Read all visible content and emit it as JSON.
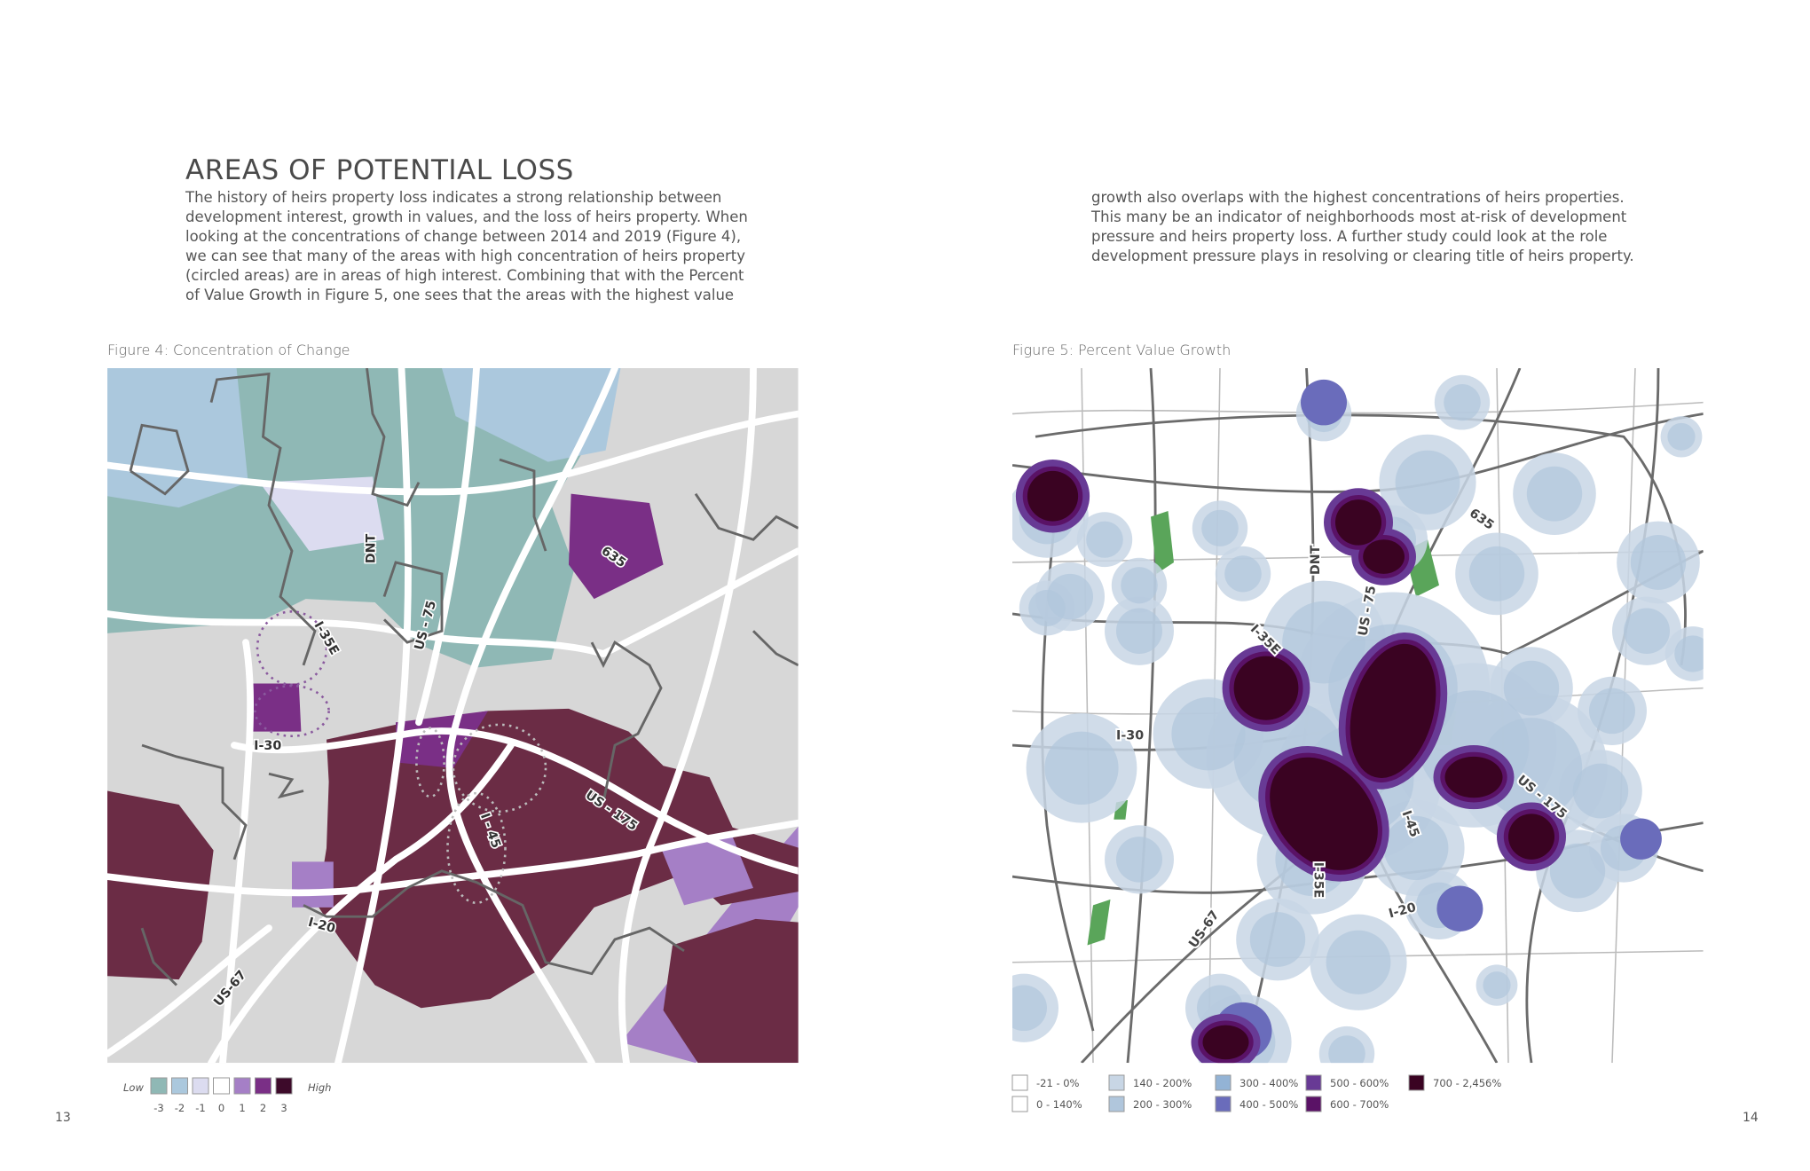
{
  "page": {
    "title": "AREAS OF POTENTIAL LOSS",
    "body_left": [
      "The history of heirs property loss indicates a strong relationship between",
      "development interest, growth in values, and the loss of heirs property. When",
      "looking at the concentrations of change between 2014 and 2019 (Figure 4),",
      "we can see that many of the areas with high concentration of heirs property",
      "(circled areas) are in areas of high interest. Combining that with the Percent",
      "of Value Growth in Figure 5, one sees that the areas with the highest value"
    ],
    "body_right": [
      "growth also overlaps with the highest concentrations of heirs properties.",
      "This many be an indicator of neighborhoods most at-risk of development",
      "pressure and heirs property loss. A further study could look at the role",
      "development pressure plays in resolving or clearing title of heirs property."
    ],
    "page_numbers": [
      13,
      14
    ]
  },
  "figures": [
    {
      "caption": "Figure 4: Concentration of Change",
      "road_labels": [
        "DNT",
        "US - 75",
        "I-35E",
        "635",
        "I-30",
        "US - 175",
        "I - 45",
        "I-20",
        "US-67"
      ],
      "legend": {
        "low": "Low",
        "high": "High",
        "items": [
          {
            "value": -3,
            "color": "#8fb8b5"
          },
          {
            "value": -2,
            "color": "#abc8dd"
          },
          {
            "value": -1,
            "color": "#dcdcf0"
          },
          {
            "value": 0,
            "color": "#ffffff"
          },
          {
            "value": 1,
            "color": "#a57fc6"
          },
          {
            "value": 2,
            "color": "#7a2f86"
          },
          {
            "value": 3,
            "color": "#3d0a2a"
          }
        ]
      }
    },
    {
      "caption": "Figure 5: Percent Value Growth",
      "road_labels": [
        "635",
        "DNT",
        "US - 75",
        "I-35E",
        "I-30",
        "US - 175",
        "I-45",
        "I-35E",
        "I-20",
        "US-67"
      ],
      "legend": {
        "items": [
          {
            "label": "-21 - 0%",
            "color": "#ffffff"
          },
          {
            "label": "0 - 140%",
            "color": "#ffffff"
          },
          {
            "label": "140 - 200%",
            "color": "#c8d6e5"
          },
          {
            "label": "200 - 300%",
            "color": "#b0c6dc"
          },
          {
            "label": "300 - 400%",
            "color": "#93b3d5"
          },
          {
            "label": "400 - 500%",
            "color": "#6a6cbb"
          },
          {
            "label": "500 - 600%",
            "color": "#683a95"
          },
          {
            "label": "600 - 700%",
            "color": "#5a1266"
          },
          {
            "label": "700 - 2,456%",
            "color": "#3a0322"
          }
        ]
      }
    }
  ]
}
